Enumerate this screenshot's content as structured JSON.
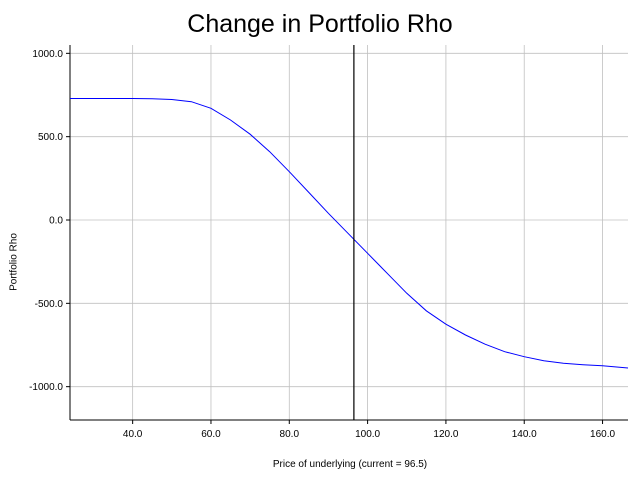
{
  "chart_data": {
    "type": "line",
    "title": "Change in Portfolio Rho",
    "xlabel": "Price of underlying (current = 96.5)",
    "ylabel": "Portfolio Rho",
    "xlim": [
      24.0,
      166.5
    ],
    "ylim": [
      -1200,
      1050
    ],
    "x_ticks": [
      40,
      60,
      80,
      100,
      120,
      140,
      160
    ],
    "x_tick_labels": [
      "40.0",
      "60.0",
      "80.0",
      "100.0",
      "120.0",
      "140.0",
      "160.0"
    ],
    "y_ticks": [
      1000,
      500,
      0,
      -500,
      -1000
    ],
    "y_tick_labels": [
      "1000.0",
      "500.0",
      "0.0",
      "-500.0",
      "-1000.0"
    ],
    "grid": true,
    "vertical_marker": {
      "x": 96.5
    },
    "series": [
      {
        "color": "#0000ff",
        "x": [
          24,
          30,
          35,
          40,
          45,
          50,
          55,
          60,
          65,
          70,
          75,
          80,
          85,
          90,
          95,
          100,
          105,
          110,
          115,
          120,
          125,
          130,
          135,
          140,
          145,
          150,
          155,
          160,
          166.5
        ],
        "y": [
          729,
          729,
          729,
          729,
          728,
          723,
          710,
          670,
          600,
          515,
          410,
          290,
          165,
          40,
          -80,
          -200,
          -320,
          -440,
          -545,
          -625,
          -690,
          -745,
          -790,
          -820,
          -845,
          -860,
          -868,
          -875,
          -888
        ]
      }
    ]
  }
}
